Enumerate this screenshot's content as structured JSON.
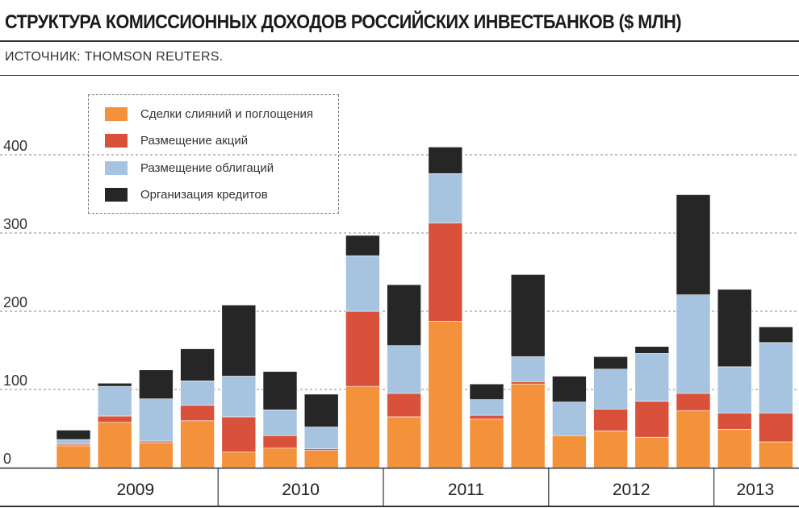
{
  "header": {
    "title": "СТРУКТУРА КОМИССИОННЫХ ДОХОДОВ РОССИЙСКИХ ИНВЕСТБАНКОВ ($ МЛН)",
    "source": "ИСТОЧНИК: THOMSON REUTERS."
  },
  "legend_items": [
    {
      "label": "Сделки слияний и поглощения",
      "color": "#f3923b"
    },
    {
      "label": "Размещение акций",
      "color": "#d9513a"
    },
    {
      "label": "Размещение облигаций",
      "color": "#a6c3e0"
    },
    {
      "label": "Организация кредитов",
      "color": "#262626"
    }
  ],
  "chart_data": {
    "type": "bar",
    "stacked": true,
    "ylim": [
      0,
      440
    ],
    "yticks": [
      "0",
      "100",
      "200",
      "300",
      "400"
    ],
    "grid": true,
    "legend_position": "top-left",
    "year_groups": [
      {
        "label": "2009",
        "bars": 4
      },
      {
        "label": "2010",
        "bars": 4
      },
      {
        "label": "2011",
        "bars": 4
      },
      {
        "label": "2012",
        "bars": 4
      },
      {
        "label": "2013",
        "bars": 2
      }
    ],
    "series": [
      {
        "name": "Сделки слияний и поглощения",
        "color": "#f3923b",
        "values": [
          28,
          58,
          32,
          60,
          20,
          25,
          22,
          104,
          65,
          187,
          62,
          107,
          41,
          47,
          39,
          73,
          49,
          33
        ]
      },
      {
        "name": "Размещение акций",
        "color": "#d9513a",
        "values": [
          2,
          8,
          2,
          20,
          45,
          16,
          2,
          96,
          30,
          126,
          5,
          3,
          0,
          28,
          46,
          22,
          21,
          37
        ]
      },
      {
        "name": "Размещение облигаций",
        "color": "#a6c3e0",
        "values": [
          6,
          38,
          54,
          31,
          52,
          33,
          28,
          71,
          61,
          63,
          20,
          32,
          43,
          51,
          61,
          126,
          59,
          90
        ]
      },
      {
        "name": "Организация кредитов",
        "color": "#262626",
        "values": [
          12,
          4,
          37,
          41,
          91,
          49,
          42,
          26,
          78,
          34,
          20,
          105,
          33,
          16,
          9,
          128,
          99,
          20
        ]
      }
    ]
  }
}
